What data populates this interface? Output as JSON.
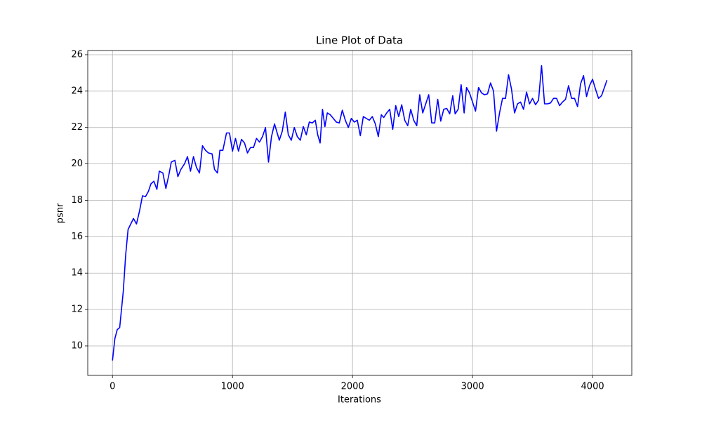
{
  "chart_data": {
    "type": "line",
    "title": "Line Plot of Data",
    "x_label": "Iterations",
    "y_label": "psnr",
    "x": [
      0,
      20,
      40,
      60,
      90,
      110,
      130,
      175,
      200,
      225,
      250,
      275,
      300,
      320,
      345,
      370,
      390,
      420,
      445,
      470,
      490,
      520,
      545,
      570,
      600,
      625,
      650,
      675,
      700,
      725,
      750,
      775,
      800,
      830,
      850,
      875,
      895,
      920,
      950,
      975,
      1000,
      1025,
      1050,
      1075,
      1100,
      1125,
      1150,
      1175,
      1200,
      1225,
      1250,
      1275,
      1300,
      1325,
      1350,
      1390,
      1415,
      1440,
      1465,
      1490,
      1515,
      1540,
      1565,
      1590,
      1615,
      1640,
      1665,
      1690,
      1710,
      1730,
      1750,
      1770,
      1790,
      1815,
      1840,
      1865,
      1890,
      1915,
      1940,
      1965,
      1990,
      2015,
      2040,
      2065,
      2090,
      2115,
      2140,
      2165,
      2190,
      2215,
      2240,
      2260,
      2285,
      2310,
      2335,
      2360,
      2385,
      2410,
      2435,
      2460,
      2485,
      2510,
      2535,
      2560,
      2585,
      2610,
      2635,
      2660,
      2685,
      2710,
      2735,
      2760,
      2785,
      2810,
      2835,
      2855,
      2880,
      2905,
      2930,
      2950,
      2975,
      3000,
      3025,
      3050,
      3075,
      3100,
      3125,
      3150,
      3175,
      3200,
      3225,
      3250,
      3275,
      3300,
      3325,
      3350,
      3375,
      3400,
      3425,
      3450,
      3475,
      3500,
      3525,
      3550,
      3575,
      3600,
      3625,
      3650,
      3675,
      3700,
      3725,
      3750,
      3775,
      3800,
      3825,
      3850,
      3875,
      3900,
      3925,
      3950,
      3975,
      4000,
      4025,
      4050,
      4075,
      4120
    ],
    "series": [
      {
        "name": "psnr",
        "color": "#0000ff",
        "values": [
          9.2,
          10.4,
          10.9,
          11.0,
          13.0,
          15.0,
          16.4,
          17.0,
          16.7,
          17.4,
          18.25,
          18.2,
          18.5,
          18.9,
          19.05,
          18.6,
          19.6,
          19.5,
          18.65,
          19.4,
          20.1,
          20.2,
          19.3,
          19.7,
          20.0,
          20.4,
          19.6,
          20.4,
          19.8,
          19.5,
          21.0,
          20.75,
          20.6,
          20.55,
          19.7,
          19.5,
          20.75,
          20.75,
          21.7,
          21.7,
          20.7,
          21.4,
          20.7,
          21.35,
          21.15,
          20.6,
          20.9,
          20.9,
          21.4,
          21.2,
          21.5,
          22.0,
          20.1,
          21.5,
          22.2,
          21.3,
          21.8,
          22.85,
          21.6,
          21.3,
          22.0,
          21.5,
          21.3,
          22.05,
          21.6,
          22.3,
          22.25,
          22.4,
          21.6,
          21.15,
          23.0,
          22.05,
          22.8,
          22.7,
          22.5,
          22.3,
          22.25,
          22.95,
          22.4,
          22.0,
          22.5,
          22.3,
          22.4,
          21.55,
          22.6,
          22.5,
          22.4,
          22.6,
          22.2,
          21.5,
          22.7,
          22.55,
          22.8,
          23.0,
          21.9,
          23.2,
          22.6,
          23.25,
          22.4,
          22.1,
          23.0,
          22.4,
          22.1,
          23.8,
          22.8,
          23.3,
          23.8,
          22.25,
          22.25,
          23.55,
          22.35,
          23.0,
          23.05,
          22.75,
          23.75,
          22.75,
          23.0,
          24.35,
          22.8,
          24.2,
          23.9,
          23.4,
          22.9,
          24.2,
          23.9,
          23.8,
          23.85,
          24.45,
          24.0,
          21.8,
          22.8,
          23.6,
          23.6,
          24.9,
          24.1,
          22.8,
          23.3,
          23.4,
          23.0,
          23.95,
          23.3,
          23.6,
          23.25,
          23.5,
          25.4,
          23.3,
          23.3,
          23.35,
          23.6,
          23.6,
          23.2,
          23.4,
          23.55,
          24.3,
          23.6,
          23.6,
          23.15,
          24.4,
          24.85,
          23.7,
          24.3,
          24.65,
          24.1,
          23.6,
          23.75,
          24.6
        ]
      }
    ],
    "xlim": [
      -206,
      4327
    ],
    "xticks": [
      0,
      1000,
      2000,
      3000,
      4000
    ],
    "ylim": [
      8.38,
      26.23
    ],
    "yticks": [
      10,
      12,
      14,
      16,
      18,
      20,
      22,
      24,
      26
    ],
    "grid": true
  }
}
